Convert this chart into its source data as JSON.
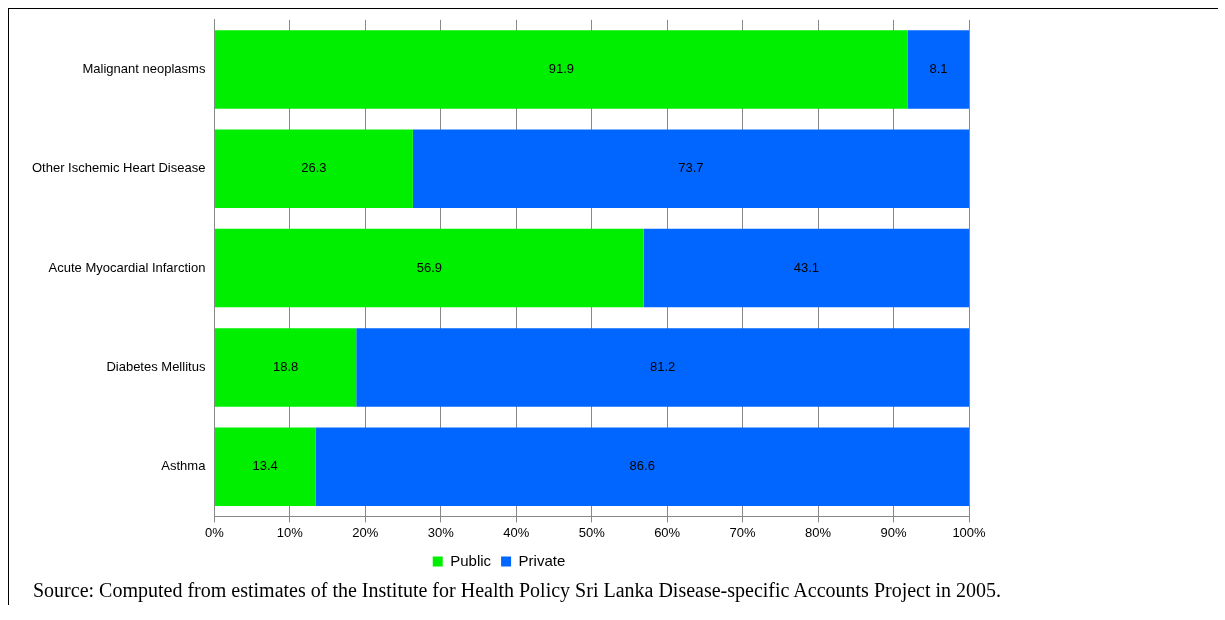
{
  "chart_data": {
    "type": "bar",
    "orientation": "horizontal",
    "stacked": true,
    "categories": [
      "Malignant neoplasms",
      "Other Ischemic Heart Disease",
      "Acute Myocardial Infarction",
      "Diabetes Mellitus",
      "Asthma"
    ],
    "series": [
      {
        "name": "Public",
        "color": "#00ee00",
        "values": [
          91.9,
          26.3,
          56.9,
          18.8,
          13.4
        ]
      },
      {
        "name": "Private",
        "color": "#0066ff",
        "values": [
          8.1,
          73.7,
          43.1,
          81.2,
          86.6
        ]
      }
    ],
    "xlim": [
      0,
      100
    ],
    "xticks": [
      {
        "value": 0,
        "label": "0%"
      },
      {
        "value": 10,
        "label": "10%"
      },
      {
        "value": 20,
        "label": "20%"
      },
      {
        "value": 30,
        "label": "30%"
      },
      {
        "value": 40,
        "label": "40%"
      },
      {
        "value": 50,
        "label": "50%"
      },
      {
        "value": 60,
        "label": "60%"
      },
      {
        "value": 70,
        "label": "70%"
      },
      {
        "value": 80,
        "label": "80%"
      },
      {
        "value": 90,
        "label": "90%"
      },
      {
        "value": 100,
        "label": "100%"
      }
    ],
    "grid": "x",
    "legend": "bottom",
    "data_labels": true,
    "annotations": [
      "Source: Computed from estimates of the Institute for Health Policy Sri Lanka Disease-specific Accounts Project in 2005."
    ]
  }
}
